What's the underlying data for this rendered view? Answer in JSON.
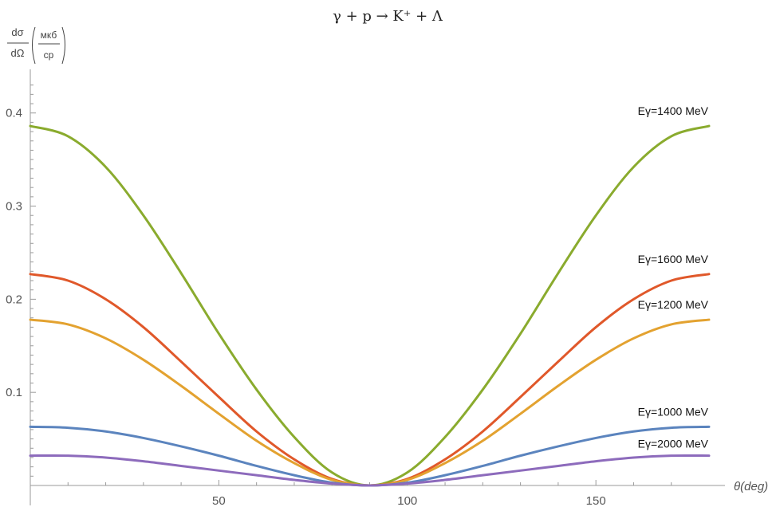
{
  "chart_data": {
    "type": "line",
    "title": "γ + p → K⁺ + Λ",
    "xlabel": "θ(deg)",
    "ylabel": {
      "numerator": "dσ",
      "denominator": "dΩ",
      "unit_top": "мкб",
      "unit_bottom": "ср"
    },
    "xlim": [
      0,
      180
    ],
    "ylim": [
      0,
      0.44
    ],
    "x_ticks": [
      50,
      100,
      150
    ],
    "y_ticks": [
      0.1,
      0.2,
      0.3,
      0.4
    ],
    "grid": false,
    "x": [
      0,
      10,
      20,
      30,
      40,
      50,
      60,
      70,
      80,
      90,
      100,
      110,
      120,
      130,
      140,
      150,
      160,
      170,
      180
    ],
    "series": [
      {
        "name": "Eγ=1400 MeV",
        "color": "#8aab2e",
        "values": [
          0.386,
          0.375,
          0.342,
          0.29,
          0.228,
          0.163,
          0.103,
          0.052,
          0.014,
          0.0,
          0.014,
          0.052,
          0.103,
          0.163,
          0.228,
          0.29,
          0.342,
          0.375,
          0.386
        ]
      },
      {
        "name": "Eγ=1600 MeV",
        "color": "#e0582a",
        "values": [
          0.227,
          0.22,
          0.2,
          0.17,
          0.133,
          0.095,
          0.058,
          0.028,
          0.007,
          0.0,
          0.007,
          0.028,
          0.058,
          0.095,
          0.133,
          0.17,
          0.2,
          0.22,
          0.227
        ]
      },
      {
        "name": "Eγ=1200 MeV",
        "color": "#e3a230",
        "values": [
          0.178,
          0.173,
          0.158,
          0.135,
          0.107,
          0.077,
          0.048,
          0.024,
          0.006,
          0.0,
          0.006,
          0.024,
          0.048,
          0.077,
          0.107,
          0.135,
          0.158,
          0.173,
          0.178
        ]
      },
      {
        "name": "Eγ=1000 MeV",
        "color": "#5b84be",
        "values": [
          0.063,
          0.062,
          0.058,
          0.051,
          0.042,
          0.032,
          0.021,
          0.011,
          0.003,
          0.0,
          0.003,
          0.011,
          0.021,
          0.032,
          0.042,
          0.051,
          0.058,
          0.062,
          0.063
        ]
      },
      {
        "name": "Eγ=2000 MeV",
        "color": "#8d6bbc",
        "values": [
          0.032,
          0.032,
          0.03,
          0.026,
          0.021,
          0.016,
          0.011,
          0.006,
          0.002,
          0.0,
          0.002,
          0.006,
          0.011,
          0.016,
          0.021,
          0.026,
          0.03,
          0.032,
          0.032
        ]
      }
    ]
  }
}
